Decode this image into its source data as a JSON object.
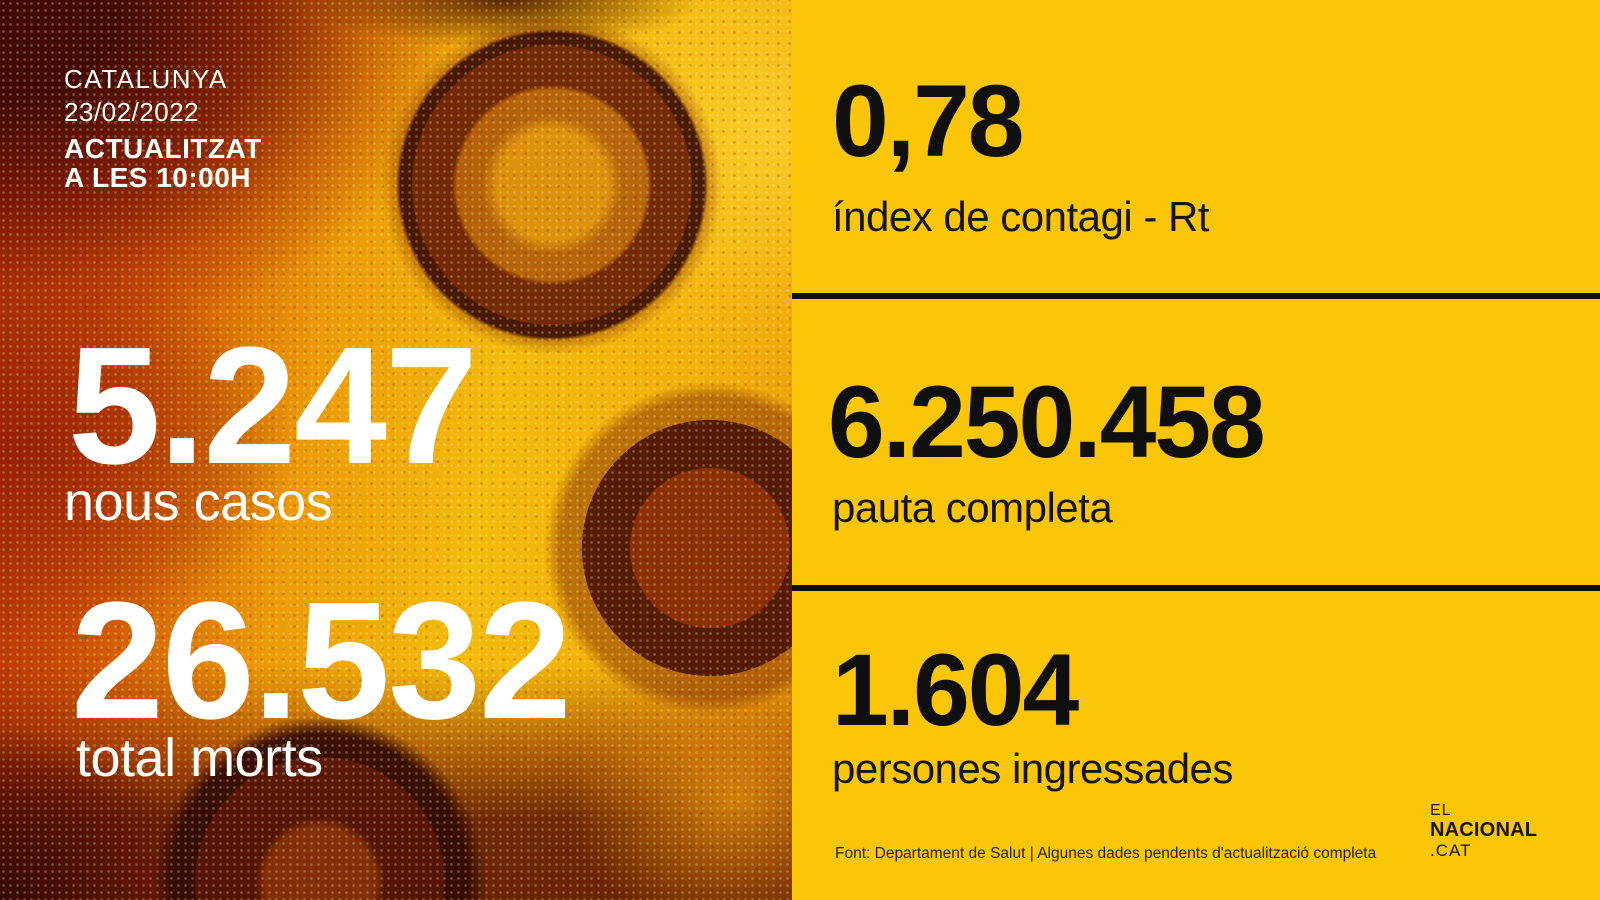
{
  "header": {
    "region": "CATALUNYA",
    "date": "23/02/2022",
    "updated_line1": "ACTUALITZAT",
    "updated_line2": "A LES 10:00H"
  },
  "left_panel": {
    "stats": [
      {
        "value": "5.247",
        "label": "nous casos"
      },
      {
        "value": "26.532",
        "label": "total morts"
      }
    ]
  },
  "right_panel": {
    "stats": [
      {
        "value": "0,78",
        "label": "índex de contagi - Rt"
      },
      {
        "value": "6.250.458",
        "label": "pauta completa"
      },
      {
        "value": "1.604",
        "label": "persones ingressades"
      }
    ],
    "source_note": "Font: Departament de Salut | Algunes dades pendents d'actualització completa"
  },
  "logo": {
    "line1": "EL",
    "line2": "NACIONAL",
    "line3": ".CAT"
  },
  "photo": {
    "subject": "coronavirus-electron-micrograph"
  },
  "colors": {
    "panel_yellow": "#fcc608",
    "divider_black": "#0f0f0f",
    "text_black": "#0f0f0f",
    "text_white": "#ffffff"
  }
}
